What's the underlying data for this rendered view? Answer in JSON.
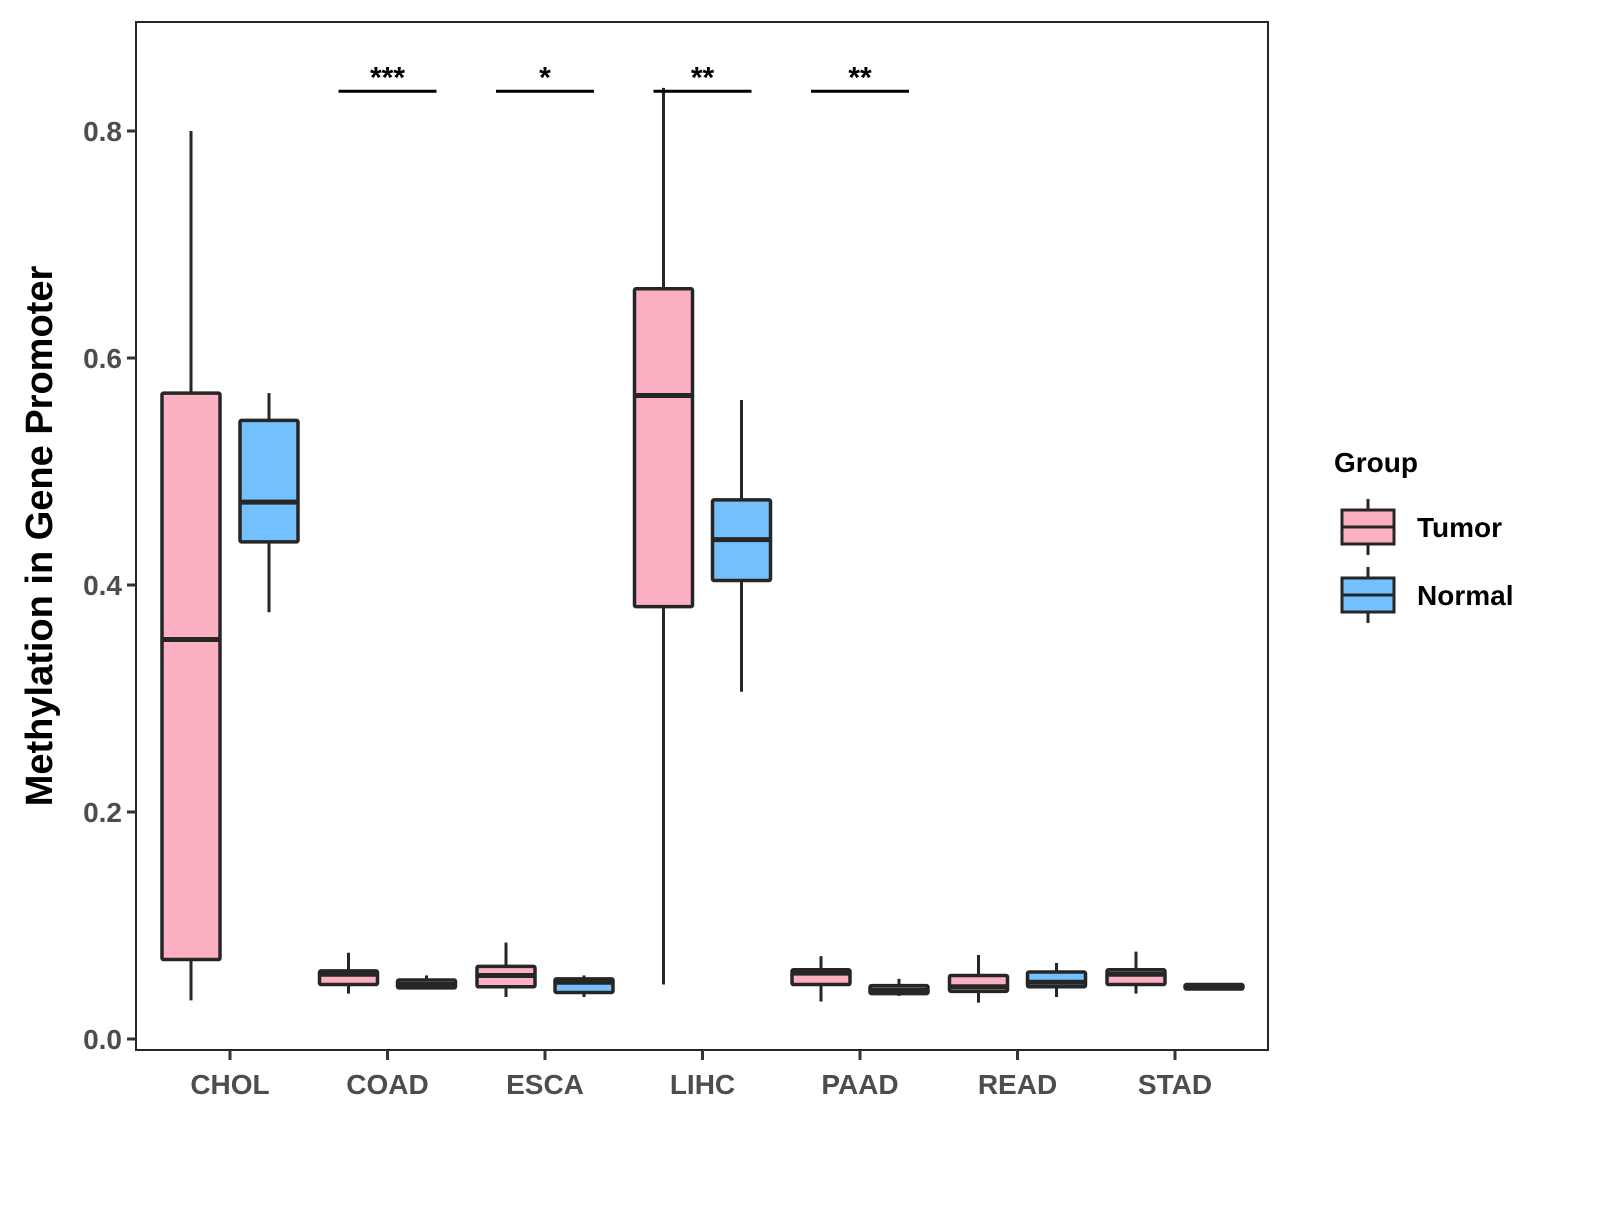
{
  "chart_data": {
    "type": "box",
    "title": "",
    "xlabel": "",
    "ylabel": "Methylation in Gene Promoter",
    "ylim": [
      -0.01,
      0.895
    ],
    "yticks": [
      "0.0",
      "0.2",
      "0.4",
      "0.6",
      "0.8"
    ],
    "ytick_values": [
      0,
      0.2,
      0.4,
      0.6,
      0.8
    ],
    "categories": [
      "CHOL",
      "COAD",
      "ESCA",
      "LIHC",
      "PAAD",
      "READ",
      "STAD"
    ],
    "legend": {
      "title": "Group",
      "placement": "right",
      "entries": [
        "Tumor",
        "Normal"
      ]
    },
    "colors": {
      "Tumor": "#FCB1C3",
      "Normal": "#74C0FC",
      "outline": "#262626"
    },
    "series": [
      {
        "name": "Tumor",
        "boxes": [
          {
            "min": 0.034,
            "q1": 0.07,
            "median": 0.352,
            "q3": 0.569,
            "max": 0.8
          },
          {
            "min": 0.04,
            "q1": 0.048,
            "median": 0.057,
            "q3": 0.06,
            "max": 0.076
          },
          {
            "min": 0.037,
            "q1": 0.046,
            "median": 0.056,
            "q3": 0.064,
            "max": 0.085
          },
          {
            "min": 0.048,
            "q1": 0.381,
            "median": 0.567,
            "q3": 0.661,
            "max": 0.838
          },
          {
            "min": 0.033,
            "q1": 0.048,
            "median": 0.058,
            "q3": 0.061,
            "max": 0.073
          },
          {
            "min": 0.032,
            "q1": 0.042,
            "median": 0.046,
            "q3": 0.056,
            "max": 0.074
          },
          {
            "min": 0.04,
            "q1": 0.048,
            "median": 0.057,
            "q3": 0.061,
            "max": 0.077
          }
        ]
      },
      {
        "name": "Normal",
        "boxes": [
          {
            "min": 0.376,
            "q1": 0.438,
            "median": 0.473,
            "q3": 0.545,
            "max": 0.569
          },
          {
            "min": 0.044,
            "q1": 0.045,
            "median": 0.048,
            "q3": 0.052,
            "max": 0.056
          },
          {
            "min": 0.037,
            "q1": 0.041,
            "median": 0.05,
            "q3": 0.053,
            "max": 0.056
          },
          {
            "min": 0.306,
            "q1": 0.404,
            "median": 0.44,
            "q3": 0.475,
            "max": 0.563
          },
          {
            "min": 0.038,
            "q1": 0.04,
            "median": 0.043,
            "q3": 0.047,
            "max": 0.053
          },
          {
            "min": 0.037,
            "q1": 0.046,
            "median": 0.05,
            "q3": 0.059,
            "max": 0.067
          },
          {
            "min": 0.044,
            "q1": 0.044,
            "median": 0.046,
            "q3": 0.048,
            "max": 0.049
          }
        ]
      }
    ],
    "annotations": [
      {
        "category": "COAD",
        "label": "***",
        "y": 0.835
      },
      {
        "category": "ESCA",
        "label": "*",
        "y": 0.835
      },
      {
        "category": "LIHC",
        "label": "**",
        "y": 0.835
      },
      {
        "category": "PAAD",
        "label": "**",
        "y": 0.835
      }
    ]
  }
}
